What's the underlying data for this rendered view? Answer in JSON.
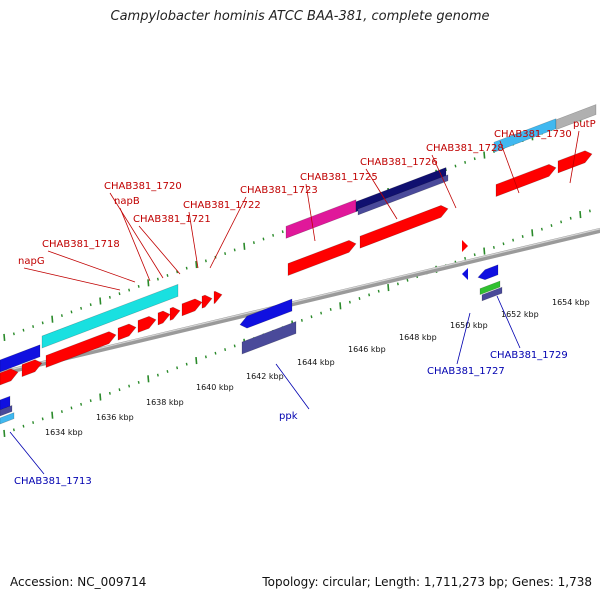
{
  "title": "Campylobacter hominis ATCC BAA-381, complete genome",
  "footer": {
    "accession": "Accession: NC_009714",
    "summary": "Topology: circular; Length: 1,711,273 bp; Genes: 1,738"
  },
  "colors": {
    "forward_label": "#c00000",
    "reverse_label": "#0000b0",
    "backbone": "#9a9a9a",
    "tick": "#2a8a2a",
    "cds": "#ff0000",
    "cyan": "#19e0e0",
    "magenta": "#e0189a",
    "navy": "#101070",
    "blue": "#1010e0",
    "slate": "#4a4a9a",
    "lightblue": "#40b8f0",
    "grey": "#b0b0b0",
    "green": "#30c030"
  },
  "tick_labels": [
    "1634 kbp",
    "1636 kbp",
    "1638 kbp",
    "1640 kbp",
    "1642 kbp",
    "1644 kbp",
    "1646 kbp",
    "1648 kbp",
    "1650 kbp",
    "1652 kbp",
    "1654 kbp"
  ],
  "forward_genes": [
    "napG",
    "CHAB381_1718",
    "napB",
    "CHAB381_1720",
    "CHAB381_1721",
    "CHAB381_1722",
    "CHAB381_1723",
    "CHAB381_1725",
    "CHAB381_1726",
    "CHAB381_1728",
    "CHAB381_1730",
    "putP"
  ],
  "reverse_genes": [
    "CHAB381_1713",
    "ppk",
    "CHAB381_1727",
    "CHAB381_1729"
  ]
}
